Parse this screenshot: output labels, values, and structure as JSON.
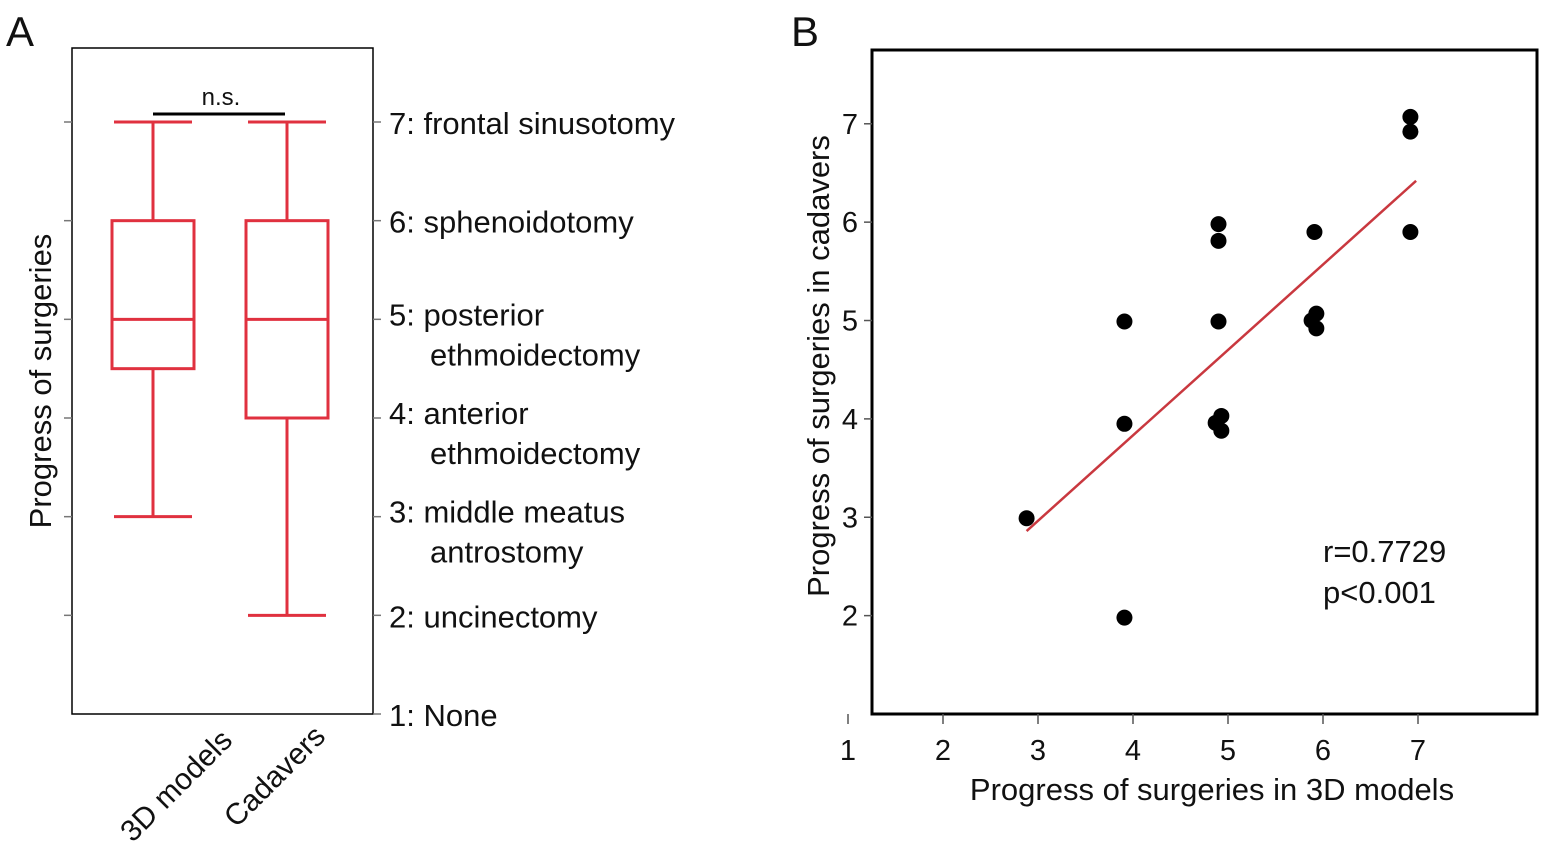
{
  "colors": {
    "box": "#e0313f",
    "fit_line": "#c9383f",
    "point": "#000000",
    "axis": "#000000"
  },
  "chart_data": [
    {
      "panel_label": "A",
      "type": "box",
      "ylabel": "Progress of surgeries",
      "ylim": [
        1,
        7.75
      ],
      "categories": [
        "3D models",
        "Cadavers"
      ],
      "boxes": [
        {
          "name": "3D models",
          "min": 3,
          "q1": 4.5,
          "median": 5,
          "q3": 6,
          "max": 7
        },
        {
          "name": "Cadavers",
          "min": 2,
          "q1": 4,
          "median": 5,
          "q3": 6,
          "max": 7
        }
      ],
      "significance": "n.s.",
      "level_labels": [
        {
          "value": 7,
          "lines": [
            "7: frontal sinusotomy"
          ]
        },
        {
          "value": 6,
          "lines": [
            "6: sphenoidotomy"
          ]
        },
        {
          "value": 5,
          "lines": [
            "5: posterior",
            "ethmoidectomy"
          ]
        },
        {
          "value": 4,
          "lines": [
            "4: anterior",
            "ethmoidectomy"
          ]
        },
        {
          "value": 3,
          "lines": [
            "3: middle meatus",
            "antrostomy"
          ]
        },
        {
          "value": 2,
          "lines": [
            "2: uncinectomy"
          ]
        },
        {
          "value": 1,
          "lines": [
            "1: None"
          ]
        }
      ]
    },
    {
      "panel_label": "B",
      "type": "scatter",
      "xlabel": "Progress of surgeries in 3D models",
      "ylabel": "Progress of surgeries in cadavers",
      "xlim": [
        1,
        8
      ],
      "ylim": [
        1,
        7.75
      ],
      "xticks": [
        1,
        2,
        3,
        4,
        5,
        6,
        7
      ],
      "yticks": [
        2,
        3,
        4,
        5,
        6,
        7
      ],
      "points": [
        {
          "x": 2.88,
          "y": 2.99
        },
        {
          "x": 3.91,
          "y": 1.98
        },
        {
          "x": 3.91,
          "y": 3.95
        },
        {
          "x": 3.91,
          "y": 4.99
        },
        {
          "x": 4.87,
          "y": 3.96
        },
        {
          "x": 4.93,
          "y": 4.03
        },
        {
          "x": 4.93,
          "y": 3.88
        },
        {
          "x": 4.9,
          "y": 4.99
        },
        {
          "x": 4.9,
          "y": 5.81
        },
        {
          "x": 4.9,
          "y": 5.98
        },
        {
          "x": 5.88,
          "y": 5.0
        },
        {
          "x": 5.93,
          "y": 5.07
        },
        {
          "x": 5.93,
          "y": 4.92
        },
        {
          "x": 5.91,
          "y": 5.9
        },
        {
          "x": 6.92,
          "y": 7.07
        },
        {
          "x": 6.92,
          "y": 6.92
        },
        {
          "x": 6.92,
          "y": 5.9
        }
      ],
      "fit_line": {
        "x": [
          2.88,
          6.98
        ],
        "y": [
          2.86,
          6.42
        ]
      },
      "annotation": [
        "r=0.7729",
        "p<0.001"
      ]
    }
  ]
}
